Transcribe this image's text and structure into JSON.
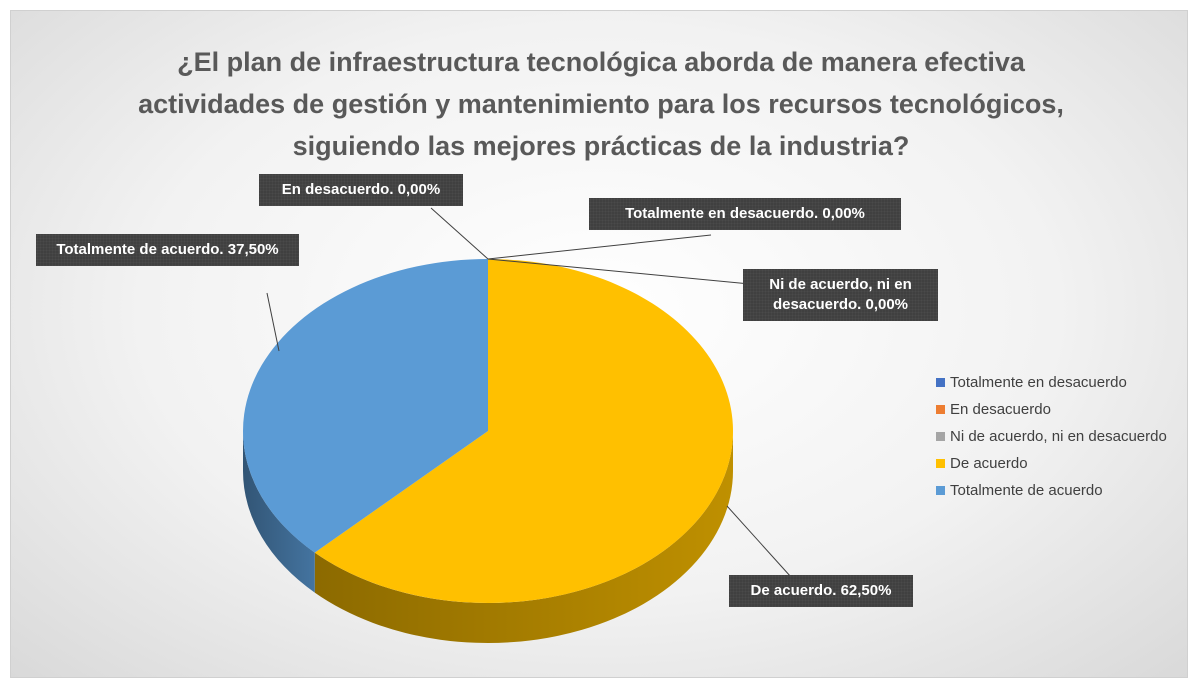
{
  "chart_data": {
    "type": "pie",
    "title": "¿El plan de infraestructura tecnológica aborda de manera efectiva actividades de gestión y mantenimiento para los recursos tecnológicos, siguiendo las mejores prácticas de la industria?",
    "categories": [
      "Totalmente en desacuerdo",
      "En desacuerdo",
      "Ni de acuerdo, ni en desacuerdo",
      "De acuerdo",
      "Totalmente de acuerdo"
    ],
    "values": [
      0,
      0,
      0,
      62.5,
      37.5
    ],
    "value_labels": [
      "Totalmente en desacuerdo. 0,00%",
      "En desacuerdo. 0,00%",
      "Ni de acuerdo, ni en desacuerdo. 0,00%",
      "De acuerdo. 62,50%",
      "Totalmente de acuerdo. 37,50%"
    ],
    "colors": [
      "#4472C4",
      "#ED7D31",
      "#A5A5A5",
      "#FFC000",
      "#5B9BD5"
    ],
    "legend": "right"
  }
}
